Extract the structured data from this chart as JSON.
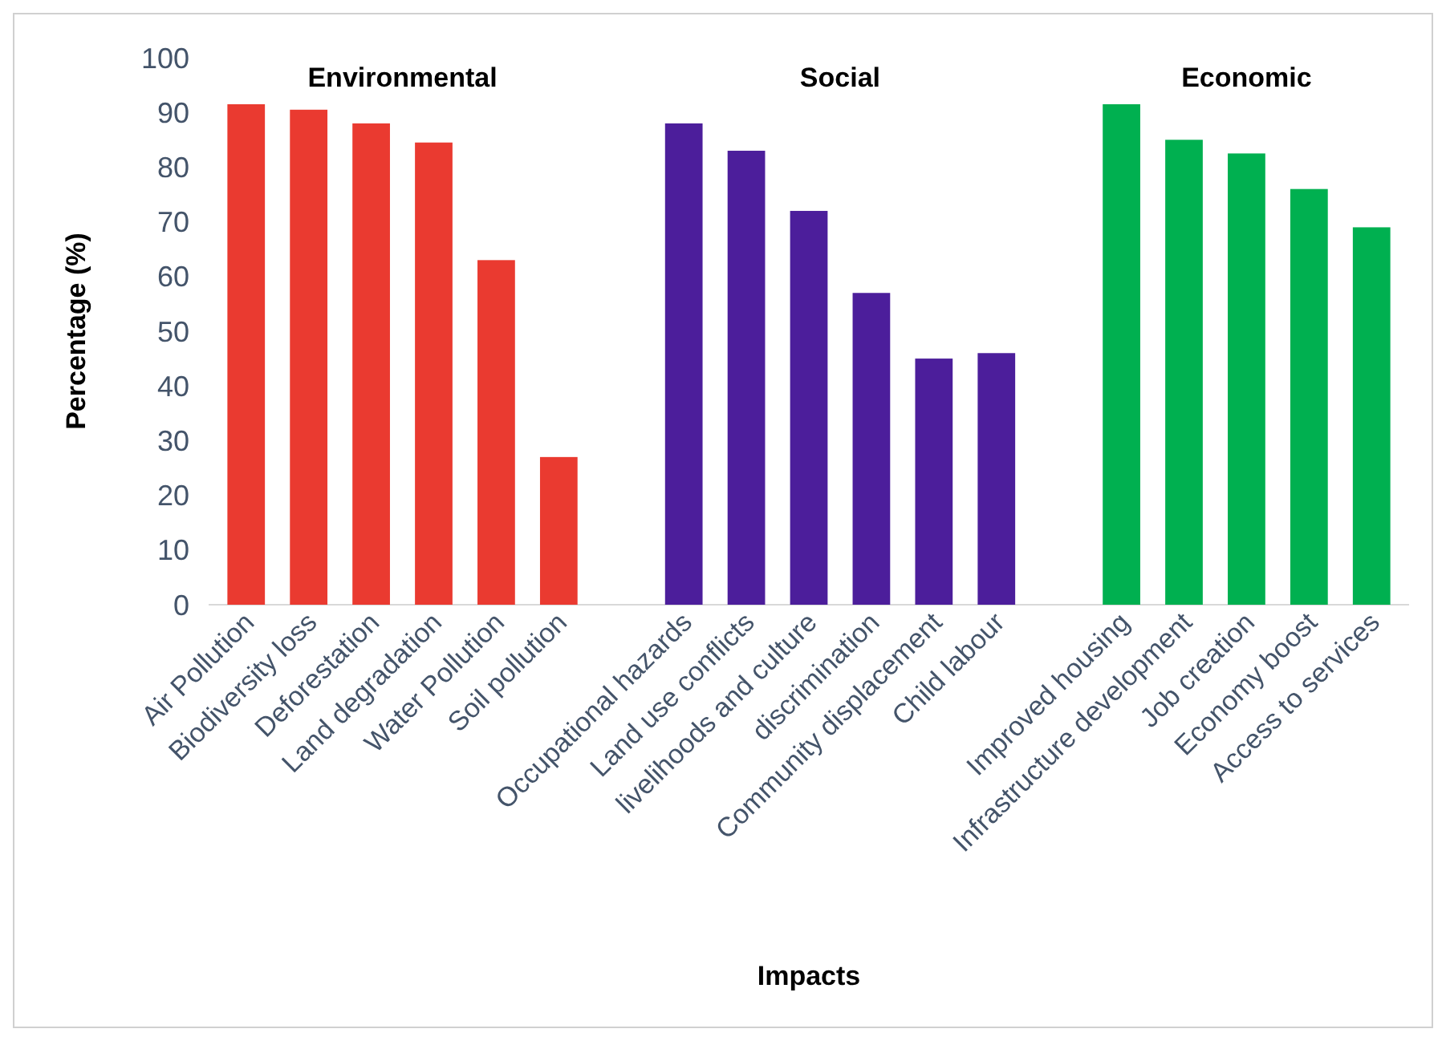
{
  "chart_data": {
    "type": "bar",
    "xlabel": "Impacts",
    "ylabel": "Percentage (%)",
    "categories": [
      "Air Pollution",
      "Biodiversity loss",
      "Deforestation",
      "Land degradation",
      "Water Pollution",
      "Soil pollution",
      null,
      "Occupational hazards",
      "Land use conflicts",
      "livelihoods and culture",
      "discrimination",
      "Community displacement",
      "Child labour",
      null,
      "Improved housing",
      "Infrastructure development",
      "Job creation",
      "Economy boost",
      "Access to services"
    ],
    "series": [
      {
        "name": "Environmental",
        "color": "#ea3a30",
        "values": [
          91.5,
          90.5,
          88,
          84.5,
          63,
          27,
          null,
          null,
          null,
          null,
          null,
          null,
          null,
          null,
          null,
          null,
          null,
          null,
          null
        ]
      },
      {
        "name": "Social",
        "color": "#4c1e9b",
        "values": [
          null,
          null,
          null,
          null,
          null,
          null,
          null,
          88,
          83,
          72,
          57,
          45,
          46,
          null,
          null,
          null,
          null,
          null,
          null
        ]
      },
      {
        "name": "Economic",
        "color": "#00b050",
        "values": [
          null,
          null,
          null,
          null,
          null,
          null,
          null,
          null,
          null,
          null,
          null,
          null,
          null,
          null,
          91.5,
          85,
          82.5,
          76,
          69
        ]
      }
    ],
    "ylim": [
      0,
      100
    ],
    "yticks": [
      0,
      10,
      20,
      30,
      40,
      50,
      60,
      70,
      80,
      90,
      100
    ]
  }
}
